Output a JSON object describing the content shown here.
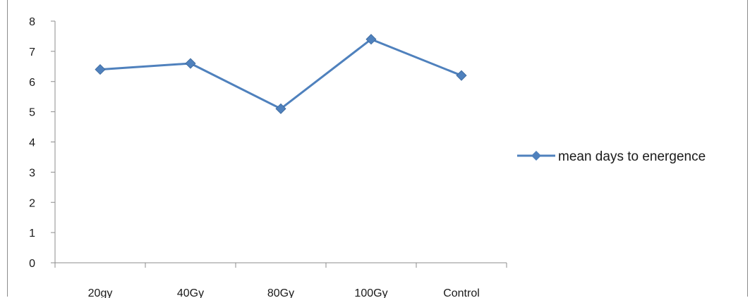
{
  "chart_data": {
    "type": "line",
    "title": "",
    "xlabel": "",
    "ylabel": "",
    "categories": [
      "20gy",
      "40Gy",
      "80Gy",
      "100Gy",
      "Control"
    ],
    "series": [
      {
        "name": "mean days to energence",
        "values": [
          6.4,
          6.6,
          5.1,
          7.4,
          6.2
        ],
        "color": "#4f81bd"
      }
    ],
    "ylim": [
      0,
      8
    ],
    "yticks": [
      "0",
      "1",
      "2",
      "3",
      "4",
      "5",
      "6",
      "7",
      "8"
    ],
    "grid": false,
    "legend_position": "right",
    "marker": "diamond"
  }
}
